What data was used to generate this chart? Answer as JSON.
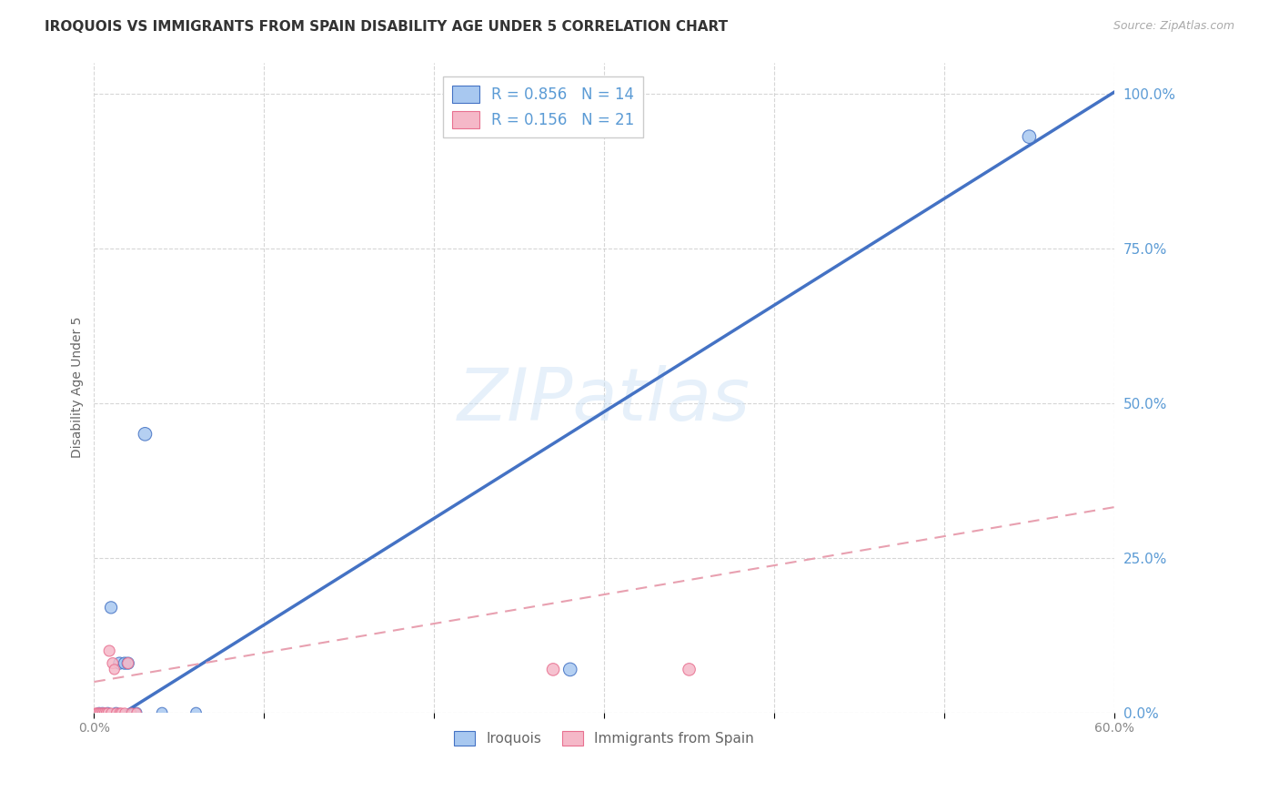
{
  "title": "IROQUOIS VS IMMIGRANTS FROM SPAIN DISABILITY AGE UNDER 5 CORRELATION CHART",
  "source": "Source: ZipAtlas.com",
  "ylabel": "Disability Age Under 5",
  "xlabel_legend1": "Iroquois",
  "xlabel_legend2": "Immigrants from Spain",
  "R_iroquois": 0.856,
  "N_iroquois": 14,
  "R_spain": 0.156,
  "N_spain": 21,
  "xmin": 0.0,
  "xmax": 0.6,
  "ymin": 0.0,
  "ymax": 1.05,
  "xticks": [
    0.0,
    0.1,
    0.2,
    0.3,
    0.4,
    0.5,
    0.6
  ],
  "xtick_labels": [
    "0.0%",
    "",
    "",
    "",
    "",
    "",
    "60.0%"
  ],
  "yticks": [
    0.0,
    0.25,
    0.5,
    0.75,
    1.0
  ],
  "ytick_labels": [
    "0.0%",
    "25.0%",
    "50.0%",
    "75.0%",
    "100.0%"
  ],
  "color_iroquois": "#a8c8f0",
  "color_spain": "#f5b8c8",
  "color_iroquois_line": "#4472c4",
  "color_spain_line": "#e8a0b0",
  "watermark": "ZIPatlas",
  "iroquois_x": [
    0.003,
    0.005,
    0.008,
    0.01,
    0.013,
    0.015,
    0.018,
    0.02,
    0.025,
    0.03,
    0.04,
    0.06,
    0.28,
    0.55
  ],
  "iroquois_y": [
    0.0,
    0.0,
    0.0,
    0.17,
    0.0,
    0.08,
    0.08,
    0.08,
    0.0,
    0.45,
    0.0,
    0.0,
    0.07,
    0.93
  ],
  "spain_x": [
    0.001,
    0.002,
    0.003,
    0.004,
    0.005,
    0.006,
    0.007,
    0.008,
    0.009,
    0.01,
    0.011,
    0.012,
    0.013,
    0.015,
    0.016,
    0.018,
    0.02,
    0.022,
    0.025,
    0.27,
    0.35
  ],
  "spain_y": [
    0.0,
    0.0,
    0.0,
    0.0,
    0.0,
    0.0,
    0.0,
    0.0,
    0.1,
    0.0,
    0.08,
    0.07,
    0.0,
    0.0,
    0.0,
    0.0,
    0.08,
    0.0,
    0.0,
    0.07,
    0.07
  ],
  "iroquois_size": [
    70,
    70,
    70,
    90,
    70,
    90,
    90,
    90,
    70,
    110,
    70,
    70,
    110,
    110
  ],
  "spain_size": [
    55,
    55,
    55,
    55,
    55,
    55,
    55,
    55,
    75,
    55,
    75,
    65,
    55,
    55,
    55,
    55,
    75,
    55,
    55,
    95,
    95
  ],
  "blue_line_slope": 1.72,
  "blue_line_intercept": -0.03,
  "pink_line_slope": 0.47,
  "pink_line_intercept": 0.05
}
